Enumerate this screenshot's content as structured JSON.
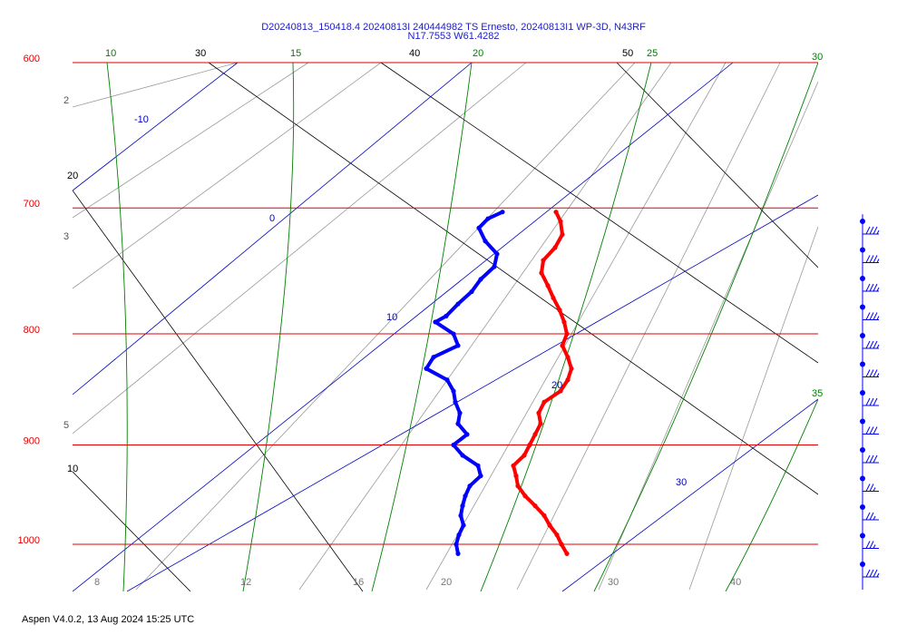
{
  "header": {
    "title_line1": "D20240813_150418.4 20240813I 240444982 TS Ernesto, 20240813I1 WP-3D, N43RF",
    "title_line2": "N17.7553 W61.4282"
  },
  "footer": {
    "text": "Aspen V4.0.2, 13 Aug 2024  15:25 UTC"
  },
  "colors": {
    "isobar": "#e00000",
    "temperature_trace": "#ff0000",
    "dewpoint_trace": "#0000ff",
    "isotherm": "#0000c0",
    "moist_adiabat": "#008000",
    "dry_adiabat": "#000000",
    "mixing_ratio": "#999999",
    "title": "#2020c0"
  },
  "chart_data": {
    "type": "line",
    "title": "D20240813_150418.4 20240813I 240444982 TS Ernesto, 20240813I1 WP-3D, N43RF",
    "subtitle": "N17.7553 W61.4282",
    "yscale": "log-pressure",
    "ylim": [
      1040,
      600
    ],
    "pressure_levels": [
      "600",
      "700",
      "800",
      "900",
      "1000"
    ],
    "isotherm_labels": [
      "-10",
      "0",
      "10",
      "20",
      "30"
    ],
    "moist_adiabat_labels": [
      "10",
      "15",
      "20",
      "25",
      "30",
      "35"
    ],
    "dry_adiabat_labels": [
      "30",
      "40",
      "50",
      "20",
      "10"
    ],
    "mixing_ratio_labels": [
      "2",
      "3",
      "5"
    ],
    "bottom_labels": [
      "8",
      "12",
      "16",
      "20",
      "30",
      "40"
    ],
    "series": [
      {
        "name": "",
        "variable": "temperature",
        "pressure": [
          703,
          710,
          720,
          730,
          740,
          750,
          760,
          770,
          780,
          790,
          800,
          810,
          820,
          830,
          840,
          850,
          860,
          870,
          880,
          890,
          900,
          910,
          920,
          930,
          940,
          950,
          960,
          970,
          980,
          990,
          1000,
          1010
        ],
        "x_screen_ref": [
          613,
          618,
          620,
          612,
          599,
          597,
          604,
          610,
          617,
          622,
          625,
          620,
          626,
          630,
          626,
          618,
          600,
          594,
          596,
          590,
          584,
          578,
          566,
          569,
          571,
          579,
          590,
          600,
          606,
          614,
          619,
          625
        ]
      },
      {
        "name": "",
        "variable": "dewpoint",
        "pressure": [
          703,
          708,
          715,
          725,
          735,
          745,
          755,
          765,
          775,
          785,
          790,
          800,
          810,
          820,
          830,
          840,
          850,
          860,
          870,
          880,
          890,
          900,
          910,
          920,
          930,
          940,
          950,
          960,
          970,
          980,
          990,
          1000,
          1010
        ],
        "x_screen_ref": [
          554,
          538,
          528,
          535,
          548,
          545,
          530,
          520,
          505,
          492,
          480,
          500,
          505,
          478,
          470,
          493,
          500,
          502,
          507,
          505,
          515,
          500,
          510,
          527,
          530,
          518,
          513,
          510,
          508,
          511,
          506,
          503,
          505
        ]
      }
    ],
    "wind_barbs": {
      "pressure": [
        715,
        740,
        765,
        790,
        815,
        840,
        865,
        890,
        915,
        940,
        965,
        990,
        1010
      ],
      "speed_kt": [
        35,
        35,
        35,
        35,
        35,
        35,
        30,
        30,
        30,
        25,
        25,
        25,
        35
      ]
    },
    "grid": true
  }
}
